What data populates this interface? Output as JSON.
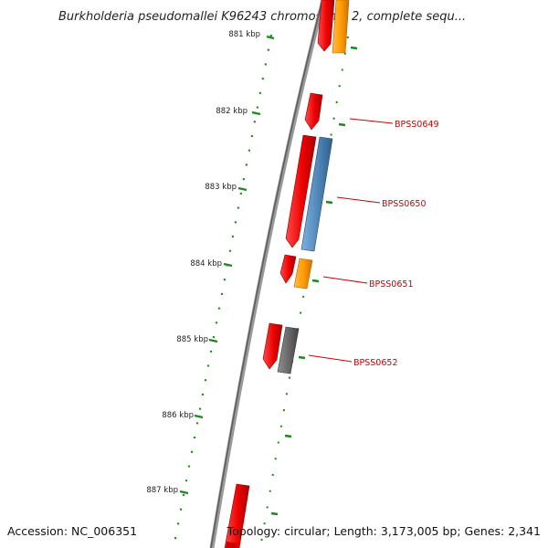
{
  "title": "Burkholderia pseudomallei K96243 chromosome 2, complete sequ...",
  "ruler_labels": [
    "881 kbp",
    "882 kbp",
    "883 kbp",
    "884 kbp",
    "885 kbp",
    "886 kbp",
    "887 kbp"
  ],
  "gene_labels": [
    "BPSS0649",
    "BPSS0650",
    "BPSS0651",
    "BPSS0652"
  ],
  "accession": "Accession: NC_006351",
  "summary": "Topology: circular; Length: 3,173,005 bp; Genes: 2,341",
  "colors": {
    "backbone": "#808080",
    "ruler_ticks": "#1a8a1a",
    "feature_red": "#ee0000",
    "feature_orange": "#ff9900",
    "feature_blue": "#4f86b8",
    "feature_gray": "#666666",
    "label_text": "#cc0000"
  }
}
